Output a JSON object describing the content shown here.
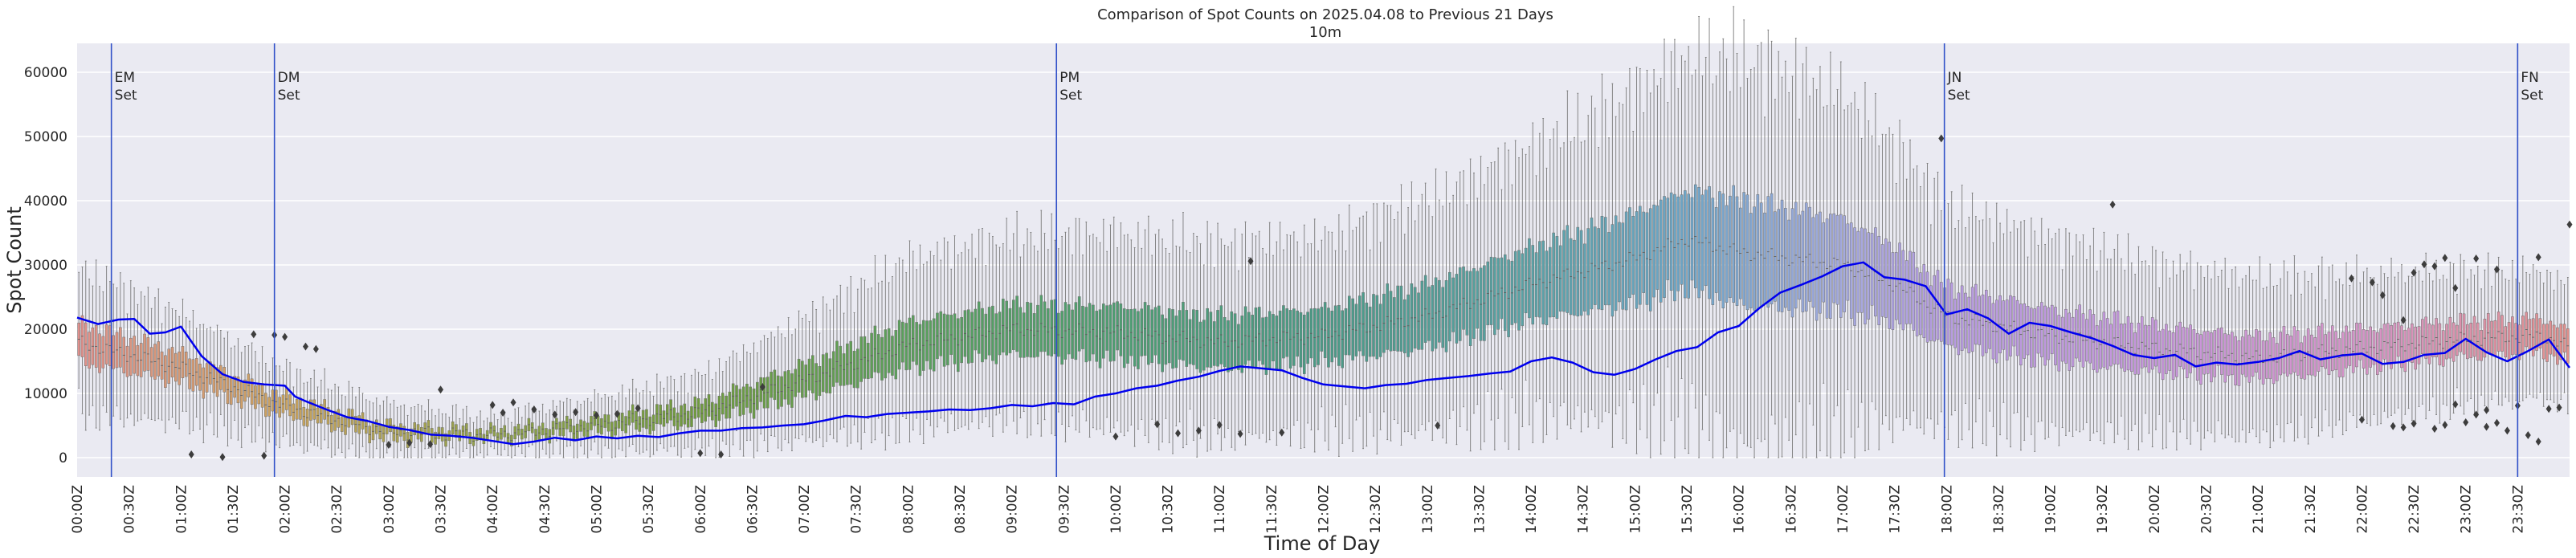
{
  "chart_data": {
    "type": "box",
    "title": "Comparison of Spot Counts on 2025.04.08 to Previous 21 Days",
    "subtitle": "10m",
    "xlabel": "Time of Day",
    "ylabel": "Spot Count",
    "ylim": [
      -3000,
      64500
    ],
    "yticks": [
      0,
      10000,
      20000,
      30000,
      40000,
      50000,
      60000
    ],
    "grid": true,
    "interval_minutes": 2,
    "xtick_labels": [
      "00:00Z",
      "00:30Z",
      "01:00Z",
      "01:30Z",
      "02:00Z",
      "02:30Z",
      "03:00Z",
      "03:30Z",
      "04:00Z",
      "04:30Z",
      "05:00Z",
      "05:30Z",
      "06:00Z",
      "06:30Z",
      "07:00Z",
      "07:30Z",
      "08:00Z",
      "08:30Z",
      "09:00Z",
      "09:30Z",
      "10:00Z",
      "10:30Z",
      "11:00Z",
      "11:30Z",
      "12:00Z",
      "12:30Z",
      "13:00Z",
      "13:30Z",
      "14:00Z",
      "14:30Z",
      "15:00Z",
      "15:30Z",
      "16:00Z",
      "16:30Z",
      "17:00Z",
      "17:30Z",
      "18:00Z",
      "18:30Z",
      "19:00Z",
      "19:30Z",
      "20:00Z",
      "20:30Z",
      "21:00Z",
      "21:30Z",
      "22:00Z",
      "22:30Z",
      "23:00Z",
      "23:30Z"
    ],
    "box_median_profile": {
      "hours": [
        0,
        1,
        2,
        3,
        4,
        5,
        6,
        7,
        8,
        9,
        10,
        11,
        12,
        13,
        14,
        15,
        15.5,
        16,
        16.5,
        17,
        17.5,
        18,
        19,
        20,
        21,
        22,
        23,
        23.75,
        24
      ],
      "values": [
        18000,
        14000,
        8000,
        4000,
        3500,
        5000,
        7000,
        12000,
        17500,
        20000,
        19500,
        18000,
        19000,
        22000,
        27000,
        31000,
        34000,
        32000,
        31000,
        30000,
        27000,
        22000,
        19000,
        17000,
        15500,
        17000,
        18500,
        19000,
        17000
      ]
    },
    "box_iqr_profile": {
      "hours": [
        0,
        2,
        4,
        6,
        8,
        10,
        12,
        14,
        16,
        17,
        18,
        20,
        22,
        24
      ],
      "values": [
        6000,
        3000,
        1500,
        3000,
        7000,
        8000,
        8000,
        11000,
        16000,
        14000,
        9000,
        7000,
        6000,
        5000
      ]
    },
    "box_color_profile": {
      "hours": [
        0,
        2,
        4,
        6,
        8,
        10,
        12,
        14,
        15.5,
        17,
        18,
        20,
        22,
        24
      ],
      "colors": [
        "#e0908c",
        "#c9a25e",
        "#8fa04a",
        "#6f9b3e",
        "#5aa05c",
        "#4e9e72",
        "#4a9a86",
        "#5aa2a6",
        "#6ea6c8",
        "#a4a9df",
        "#b69ae0",
        "#c696dc",
        "#d694c8",
        "#e0908c"
      ]
    },
    "series": [
      {
        "name": "2025.04.08",
        "color": "#0000ee",
        "points": [
          [
            0.0,
            21800
          ],
          [
            0.2,
            20800
          ],
          [
            0.4,
            21500
          ],
          [
            0.55,
            21600
          ],
          [
            0.7,
            19300
          ],
          [
            0.85,
            19500
          ],
          [
            1.0,
            20400
          ],
          [
            1.2,
            15800
          ],
          [
            1.4,
            13000
          ],
          [
            1.6,
            11800
          ],
          [
            1.8,
            11400
          ],
          [
            2.0,
            11200
          ],
          [
            2.1,
            9500
          ],
          [
            2.2,
            8800
          ],
          [
            2.4,
            7500
          ],
          [
            2.6,
            6300
          ],
          [
            2.8,
            5700
          ],
          [
            3.0,
            4800
          ],
          [
            3.2,
            4300
          ],
          [
            3.4,
            3600
          ],
          [
            3.6,
            3400
          ],
          [
            3.8,
            3100
          ],
          [
            4.0,
            2600
          ],
          [
            4.2,
            2100
          ],
          [
            4.4,
            2500
          ],
          [
            4.6,
            3100
          ],
          [
            4.8,
            2700
          ],
          [
            5.0,
            3300
          ],
          [
            5.2,
            3000
          ],
          [
            5.4,
            3400
          ],
          [
            5.6,
            3200
          ],
          [
            5.8,
            3800
          ],
          [
            6.0,
            4200
          ],
          [
            6.2,
            4200
          ],
          [
            6.4,
            4600
          ],
          [
            6.6,
            4700
          ],
          [
            6.8,
            5000
          ],
          [
            7.0,
            5200
          ],
          [
            7.2,
            5800
          ],
          [
            7.4,
            6500
          ],
          [
            7.6,
            6300
          ],
          [
            7.8,
            6800
          ],
          [
            8.0,
            7000
          ],
          [
            8.2,
            7200
          ],
          [
            8.4,
            7500
          ],
          [
            8.6,
            7400
          ],
          [
            8.8,
            7700
          ],
          [
            9.0,
            8200
          ],
          [
            9.2,
            8000
          ],
          [
            9.4,
            8500
          ],
          [
            9.6,
            8300
          ],
          [
            9.8,
            9500
          ],
          [
            10.0,
            10000
          ],
          [
            10.2,
            10800
          ],
          [
            10.4,
            11200
          ],
          [
            10.6,
            12000
          ],
          [
            10.8,
            12600
          ],
          [
            11.0,
            13500
          ],
          [
            11.2,
            14200
          ],
          [
            11.4,
            13900
          ],
          [
            11.6,
            13600
          ],
          [
            11.8,
            12400
          ],
          [
            12.0,
            11400
          ],
          [
            12.2,
            11100
          ],
          [
            12.4,
            10800
          ],
          [
            12.6,
            11300
          ],
          [
            12.8,
            11500
          ],
          [
            13.0,
            12100
          ],
          [
            13.2,
            12400
          ],
          [
            13.4,
            12700
          ],
          [
            13.6,
            13100
          ],
          [
            13.8,
            13400
          ],
          [
            14.0,
            15000
          ],
          [
            14.2,
            15600
          ],
          [
            14.4,
            14800
          ],
          [
            14.6,
            13300
          ],
          [
            14.8,
            12900
          ],
          [
            15.0,
            13800
          ],
          [
            15.2,
            15300
          ],
          [
            15.4,
            16600
          ],
          [
            15.6,
            17200
          ],
          [
            15.8,
            19500
          ],
          [
            16.0,
            20500
          ],
          [
            16.2,
            23300
          ],
          [
            16.4,
            25700
          ],
          [
            16.6,
            26900
          ],
          [
            16.8,
            28200
          ],
          [
            17.0,
            29800
          ],
          [
            17.2,
            30400
          ],
          [
            17.4,
            28100
          ],
          [
            17.6,
            27700
          ],
          [
            17.8,
            26700
          ],
          [
            18.0,
            22300
          ],
          [
            18.2,
            23100
          ],
          [
            18.4,
            21700
          ],
          [
            18.6,
            19300
          ],
          [
            18.8,
            21000
          ],
          [
            19.0,
            20500
          ],
          [
            19.2,
            19500
          ],
          [
            19.4,
            18600
          ],
          [
            19.6,
            17400
          ],
          [
            19.8,
            16000
          ],
          [
            20.0,
            15500
          ],
          [
            20.2,
            16000
          ],
          [
            20.4,
            14200
          ],
          [
            20.6,
            14800
          ],
          [
            20.8,
            14500
          ],
          [
            21.0,
            14900
          ],
          [
            21.2,
            15500
          ],
          [
            21.4,
            16600
          ],
          [
            21.6,
            15300
          ],
          [
            21.8,
            15900
          ],
          [
            22.0,
            16200
          ],
          [
            22.2,
            14600
          ],
          [
            22.4,
            14900
          ],
          [
            22.6,
            16000
          ],
          [
            22.8,
            16300
          ],
          [
            23.0,
            18500
          ],
          [
            23.2,
            16400
          ],
          [
            23.4,
            15000
          ],
          [
            23.6,
            16600
          ],
          [
            23.8,
            18400
          ],
          [
            24.0,
            14000
          ]
        ]
      }
    ],
    "outliers": [
      [
        1.1,
        500
      ],
      [
        1.4,
        100
      ],
      [
        1.8,
        300
      ],
      [
        2.0,
        18800
      ],
      [
        1.7,
        19200
      ],
      [
        1.9,
        19100
      ],
      [
        2.2,
        17300
      ],
      [
        2.3,
        16900
      ],
      [
        3.0,
        2000
      ],
      [
        3.2,
        2300
      ],
      [
        3.4,
        2100
      ],
      [
        3.5,
        10600
      ],
      [
        4.0,
        8200
      ],
      [
        4.1,
        7000
      ],
      [
        4.2,
        8600
      ],
      [
        4.4,
        7500
      ],
      [
        4.6,
        6700
      ],
      [
        4.8,
        7100
      ],
      [
        5.0,
        6600
      ],
      [
        5.2,
        6800
      ],
      [
        5.4,
        7700
      ],
      [
        6.0,
        700
      ],
      [
        6.2,
        500
      ],
      [
        6.6,
        11000
      ],
      [
        10.0,
        3300
      ],
      [
        10.4,
        5200
      ],
      [
        10.6,
        3800
      ],
      [
        10.8,
        4200
      ],
      [
        11.0,
        5100
      ],
      [
        11.2,
        3700
      ],
      [
        11.3,
        30600
      ],
      [
        11.6,
        3900
      ],
      [
        13.1,
        5000
      ],
      [
        17.95,
        49700
      ],
      [
        19.6,
        39400
      ],
      [
        21.9,
        27900
      ],
      [
        22.0,
        5900
      ],
      [
        22.1,
        27300
      ],
      [
        22.2,
        25300
      ],
      [
        22.4,
        21400
      ],
      [
        22.5,
        28800
      ],
      [
        22.6,
        30100
      ],
      [
        22.7,
        29800
      ],
      [
        22.8,
        31100
      ],
      [
        22.9,
        26400
      ],
      [
        23.1,
        31000
      ],
      [
        23.3,
        29300
      ],
      [
        23.5,
        8100
      ],
      [
        23.7,
        31200
      ],
      [
        23.8,
        7600
      ],
      [
        23.9,
        7800
      ],
      [
        24.0,
        36300
      ],
      [
        24.1,
        31200
      ],
      [
        22.7,
        4500
      ],
      [
        22.8,
        5100
      ],
      [
        22.9,
        8300
      ],
      [
        23.0,
        5500
      ],
      [
        23.2,
        4800
      ],
      [
        23.3,
        5400
      ],
      [
        23.4,
        4200
      ],
      [
        23.6,
        3500
      ],
      [
        23.7,
        2500
      ],
      [
        22.3,
        4900
      ],
      [
        22.4,
        4700
      ],
      [
        22.5,
        5300
      ],
      [
        23.1,
        6700
      ],
      [
        23.2,
        7400
      ]
    ],
    "annotations": [
      {
        "id": "em-set",
        "hour": 0.33,
        "lines": [
          "EM",
          "Set"
        ]
      },
      {
        "id": "dm-set",
        "hour": 1.9,
        "lines": [
          "DM",
          "Set"
        ]
      },
      {
        "id": "pm-set",
        "hour": 9.43,
        "lines": [
          "PM",
          "Set"
        ]
      },
      {
        "id": "jn-set",
        "hour": 17.98,
        "lines": [
          "JN",
          "Set"
        ]
      },
      {
        "id": "fn-set",
        "hour": 23.5,
        "lines": [
          "FN",
          "Set"
        ]
      }
    ],
    "colors": {
      "plot_background": "#eaeaf2",
      "grid": "#ffffff",
      "event_line": "#3050c8",
      "outlier": "#3d3d3d",
      "whisker": "#7a7a7a"
    }
  }
}
